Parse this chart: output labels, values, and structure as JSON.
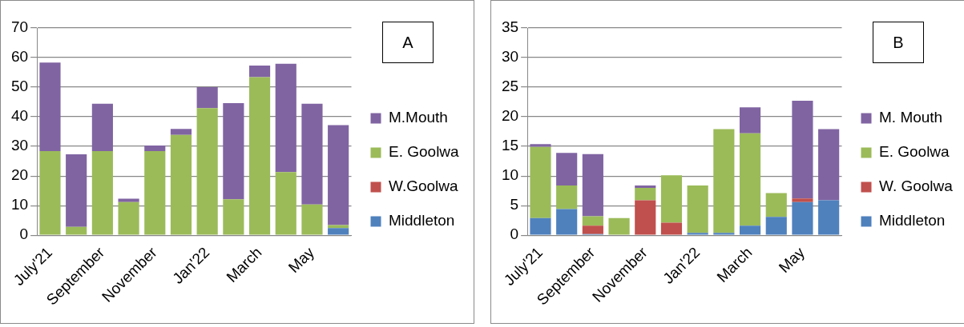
{
  "chart_data": [
    {
      "type": "bar",
      "annotations": [
        "A"
      ],
      "stacked": true,
      "categories": [
        "July'21",
        null,
        "September",
        null,
        "November",
        null,
        "Jan'22",
        null,
        "March",
        null,
        "May",
        null
      ],
      "ylim": [
        0,
        70
      ],
      "yticks": [
        0,
        10,
        20,
        30,
        40,
        50,
        60,
        70
      ],
      "grid": "y",
      "legend": "right",
      "series": [
        {
          "name": "Middleton",
          "color": "#4f81bd",
          "values": [
            0,
            0,
            0,
            0,
            0,
            0,
            0,
            0,
            0,
            0,
            0,
            2.4
          ]
        },
        {
          "name": "W.Goolwa",
          "color": "#c0504d",
          "values": [
            0,
            0,
            0,
            0,
            0,
            0,
            0,
            0,
            0,
            0,
            0,
            0
          ]
        },
        {
          "name": "E. Goolwa",
          "color": "#9bbb59",
          "values": [
            28.4,
            2.8,
            28.4,
            11.2,
            28.4,
            33.9,
            42.9,
            12.1,
            53.4,
            21.3,
            10.4,
            1.0
          ]
        },
        {
          "name": "M.Mouth",
          "color": "#8064a2",
          "values": [
            29.9,
            24.5,
            16,
            1.1,
            1.9,
            2,
            7.1,
            32.5,
            3.9,
            36.6,
            34,
            33.8
          ]
        }
      ]
    },
    {
      "type": "bar",
      "annotations": [
        "B"
      ],
      "stacked": true,
      "categories": [
        "July'21",
        null,
        "September",
        null,
        "November",
        null,
        "Jan'22",
        null,
        "March",
        null,
        "May",
        null
      ],
      "ylim": [
        0,
        35
      ],
      "yticks": [
        0,
        5,
        10,
        15,
        20,
        25,
        30,
        35
      ],
      "grid": "y",
      "legend": "right",
      "series": [
        {
          "name": "Middleton",
          "color": "#4f81bd",
          "values": [
            2.9,
            4.4,
            0.2,
            0,
            0,
            0,
            0.4,
            0.4,
            1.6,
            3.1,
            5.6,
            5.9
          ]
        },
        {
          "name": "W. Goolwa",
          "color": "#c0504d",
          "values": [
            0,
            0,
            1.4,
            0,
            5.9,
            2.1,
            0,
            0,
            0,
            0,
            0.6,
            0
          ]
        },
        {
          "name": "E. Goolwa",
          "color": "#9bbb59",
          "values": [
            12,
            4,
            1.6,
            2.9,
            2.1,
            8,
            8,
            17.5,
            15.6,
            4,
            0,
            0
          ]
        },
        {
          "name": "M. Mouth",
          "color": "#8064a2",
          "values": [
            0.5,
            5.5,
            10.5,
            0,
            0.4,
            0,
            0,
            0,
            4.4,
            0,
            16.5,
            12
          ]
        }
      ]
    }
  ]
}
